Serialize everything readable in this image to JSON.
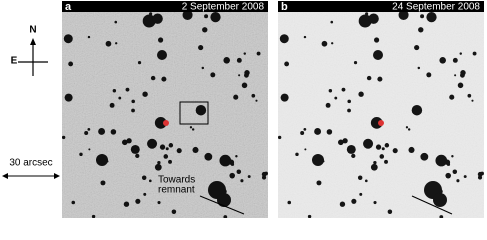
{
  "compass": {
    "north": "N",
    "east": "E"
  },
  "scale_bar": "30 arcsec",
  "panels": [
    {
      "label": "a",
      "date": "2 September 2008",
      "annotation": [
        "Towards",
        "remnant"
      ]
    },
    {
      "label": "b",
      "date": "24 September 2008"
    }
  ]
}
